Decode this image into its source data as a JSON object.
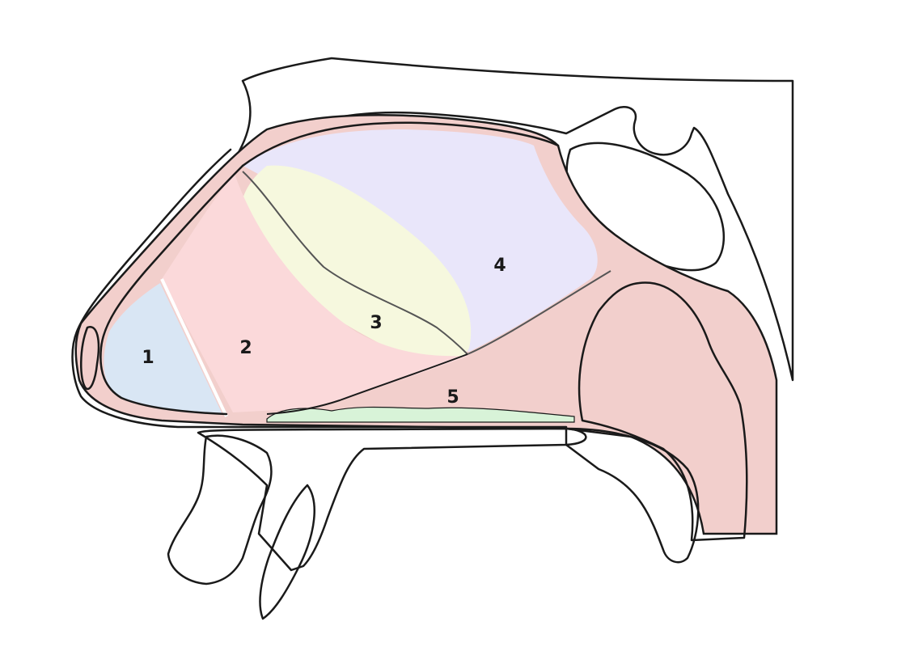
{
  "colors": {
    "bone": "#fbecd6",
    "mucosa": "#f2cfcc",
    "zone_1": "#d9e6f4",
    "zone_2": "#fbd9da",
    "zone_3": "#f6f8de",
    "zone_4": "#e9e6fa",
    "zone_5": "#d8f3d8",
    "sinus": "#f4c9c6",
    "adenoid": "#a87872",
    "lip": "#ee9a8c",
    "tooth": "#ffffff",
    "outline": "#1a1a1a"
  },
  "zones": [
    {
      "id": "zone-1",
      "label": "1"
    },
    {
      "id": "zone-2",
      "label": "2"
    },
    {
      "id": "zone-3",
      "label": "3"
    },
    {
      "id": "zone-4",
      "label": "4"
    },
    {
      "id": "zone-5",
      "label": "5"
    }
  ]
}
